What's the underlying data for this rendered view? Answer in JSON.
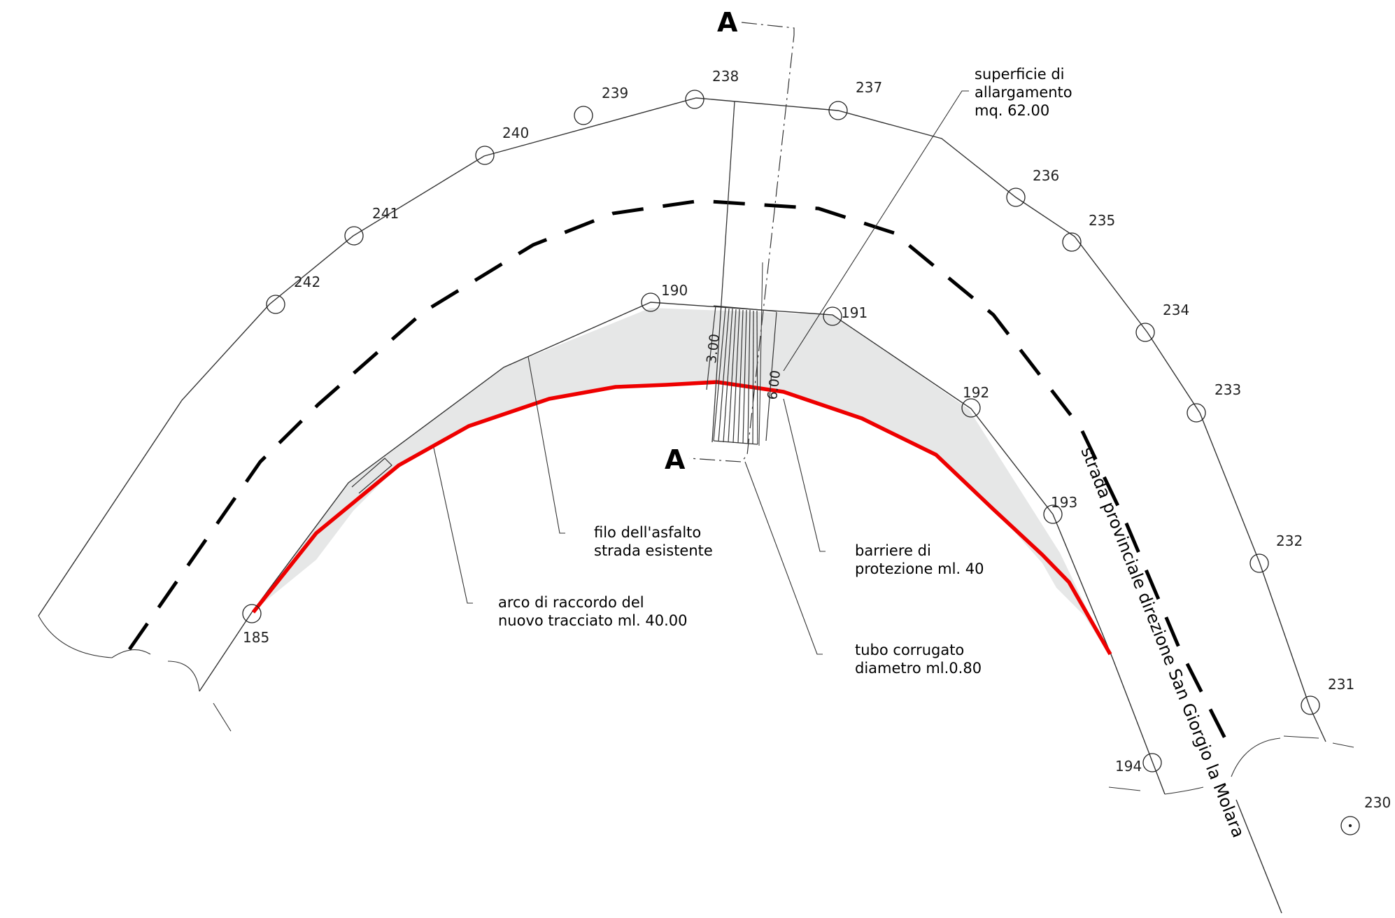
{
  "drawing": {
    "section_label_top": "A",
    "section_label_bottom": "A",
    "road_name": "strada provinciale direzione San Giorgio la Molara",
    "dim_short": "3.00",
    "dim_long": "6.00"
  },
  "annotations": {
    "surface": [
      "superficie di",
      "allargamento",
      "mq. 62.00"
    ],
    "asphalt_edge": [
      "filo dell'asfalto",
      "strada esistente"
    ],
    "barriers": [
      "barriere di",
      "protezione ml. 40"
    ],
    "arc": [
      "arco di raccordo del",
      "nuovo tracciato ml. 40.00"
    ],
    "pipe": [
      "tubo corrugato",
      "diametro ml.0.80"
    ]
  },
  "survey_points": [
    {
      "id": "185"
    },
    {
      "id": "190"
    },
    {
      "id": "191"
    },
    {
      "id": "192"
    },
    {
      "id": "193"
    },
    {
      "id": "194"
    },
    {
      "id": "230"
    },
    {
      "id": "231"
    },
    {
      "id": "232"
    },
    {
      "id": "233"
    },
    {
      "id": "234"
    },
    {
      "id": "235"
    },
    {
      "id": "236"
    },
    {
      "id": "237"
    },
    {
      "id": "238"
    },
    {
      "id": "239"
    },
    {
      "id": "240"
    },
    {
      "id": "241"
    },
    {
      "id": "242"
    }
  ],
  "colors": {
    "new_alignment": "#ee0000",
    "widening_fill": "#e6e7e7",
    "linework": "#333333"
  }
}
